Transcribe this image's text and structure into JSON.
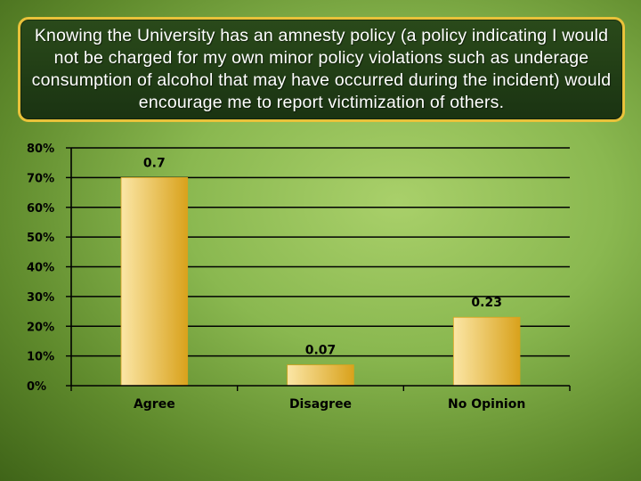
{
  "title": "Knowing the University has an amnesty policy (a policy indicating I would not be charged for my own minor policy violations such as underage consumption of alcohol that may have occurred during the incident) would encourage me to report victimization of others.",
  "colors": {
    "bar_light": "#fbe6a6",
    "bar_dark": "#d9a21c",
    "title_border": "#e9c23a",
    "gridline": "#000000"
  },
  "chart_data": {
    "type": "bar",
    "categories": [
      "Agree",
      "Disagree",
      "No Opinion"
    ],
    "values": [
      0.7,
      0.07,
      0.23
    ],
    "data_labels": [
      "0.7",
      "0.07",
      "0.23"
    ],
    "ylim": [
      0,
      0.8
    ],
    "yticks": [
      0,
      0.1,
      0.2,
      0.3,
      0.4,
      0.5,
      0.6,
      0.7,
      0.8
    ],
    "ytick_labels": [
      "0%",
      "10%",
      "20%",
      "30%",
      "40%",
      "50%",
      "60%",
      "70%",
      "80%"
    ],
    "grid": true,
    "legend": "none"
  }
}
